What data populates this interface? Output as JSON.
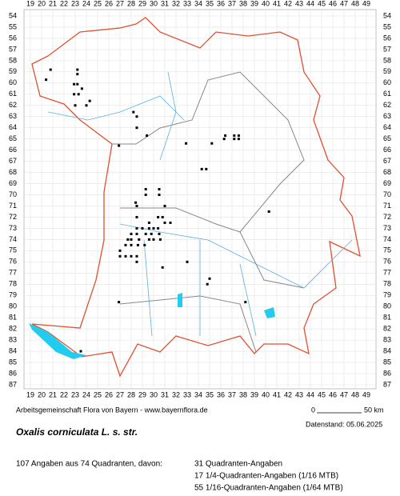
{
  "map": {
    "columns": [
      19,
      20,
      21,
      22,
      23,
      24,
      25,
      26,
      27,
      28,
      29,
      30,
      31,
      32,
      33,
      34,
      35,
      36,
      37,
      38,
      39,
      40,
      41,
      42,
      43,
      44,
      45,
      46,
      47,
      48,
      49
    ],
    "rows": [
      54,
      55,
      56,
      57,
      58,
      59,
      60,
      61,
      62,
      63,
      64,
      65,
      66,
      67,
      68,
      69,
      70,
      71,
      72,
      73,
      74,
      75,
      76,
      77,
      78,
      79,
      80,
      81,
      82,
      83,
      84,
      85,
      86,
      87
    ],
    "records": [
      [
        20.8,
        58.8
      ],
      [
        23.2,
        58.8
      ],
      [
        23.2,
        59.2
      ],
      [
        20.4,
        59.7
      ],
      [
        22.9,
        60.1
      ],
      [
        23.2,
        60.1
      ],
      [
        23.6,
        60.5
      ],
      [
        22.9,
        61
      ],
      [
        23.3,
        61
      ],
      [
        24.3,
        61.6
      ],
      [
        23,
        62
      ],
      [
        24,
        62
      ],
      [
        28.2,
        62.6
      ],
      [
        28.5,
        63
      ],
      [
        28.5,
        64
      ],
      [
        29.4,
        64.7
      ],
      [
        36.4,
        64.7
      ],
      [
        37.2,
        64.7
      ],
      [
        37.6,
        64.7
      ],
      [
        36.3,
        65
      ],
      [
        37.2,
        65
      ],
      [
        37.6,
        65
      ],
      [
        32.9,
        65.4
      ],
      [
        35.2,
        65.4
      ],
      [
        26.9,
        65.6
      ],
      [
        34.3,
        67.7
      ],
      [
        34.7,
        67.7
      ],
      [
        29.3,
        69.5
      ],
      [
        30.5,
        69.5
      ],
      [
        29.3,
        70
      ],
      [
        30.5,
        70
      ],
      [
        28.4,
        70.7
      ],
      [
        28.5,
        71
      ],
      [
        31,
        71
      ],
      [
        40.3,
        71.5
      ],
      [
        28.5,
        72
      ],
      [
        30.4,
        72
      ],
      [
        30.8,
        72
      ],
      [
        29.6,
        72.5
      ],
      [
        31,
        72.5
      ],
      [
        31.5,
        72.5
      ],
      [
        28.5,
        73
      ],
      [
        29,
        73
      ],
      [
        29.6,
        73
      ],
      [
        30,
        73
      ],
      [
        30.4,
        73
      ],
      [
        28,
        73.5
      ],
      [
        28.5,
        73.5
      ],
      [
        29.3,
        73.5
      ],
      [
        29.8,
        73.5
      ],
      [
        30.5,
        73.5
      ],
      [
        27.7,
        74
      ],
      [
        28,
        74
      ],
      [
        28.7,
        74
      ],
      [
        29.6,
        74
      ],
      [
        30,
        74
      ],
      [
        30.6,
        74
      ],
      [
        27.5,
        74.5
      ],
      [
        28,
        74.5
      ],
      [
        28.6,
        74.5
      ],
      [
        29.2,
        74.5
      ],
      [
        27,
        75
      ],
      [
        27,
        75.5
      ],
      [
        27.5,
        75.5
      ],
      [
        28,
        75.5
      ],
      [
        28.5,
        75.5
      ],
      [
        28.5,
        76
      ],
      [
        33,
        76
      ],
      [
        30.8,
        76.5
      ],
      [
        35,
        77.5
      ],
      [
        34.8,
        78
      ],
      [
        26.9,
        79.6
      ],
      [
        38.2,
        79.6
      ],
      [
        23.5,
        84
      ]
    ]
  },
  "footer": {
    "source": "Arbeitsgemeinschaft Flora von Bayern - www.bayernflora.de",
    "scale_start": "0",
    "scale_end": "50 km",
    "date": "Datenstand: 05.06.2025"
  },
  "title": "Oxalis corniculata L. s. str.",
  "summary": {
    "total": "107 Angaben aus 74 Quadranten, davon:",
    "lines": [
      "31 Quadranten-Angaben",
      "17 1/4-Quadranten-Angaben (1/16 MTB)",
      "55 1/16-Quadranten-Angaben (1/64 MTB)"
    ]
  }
}
